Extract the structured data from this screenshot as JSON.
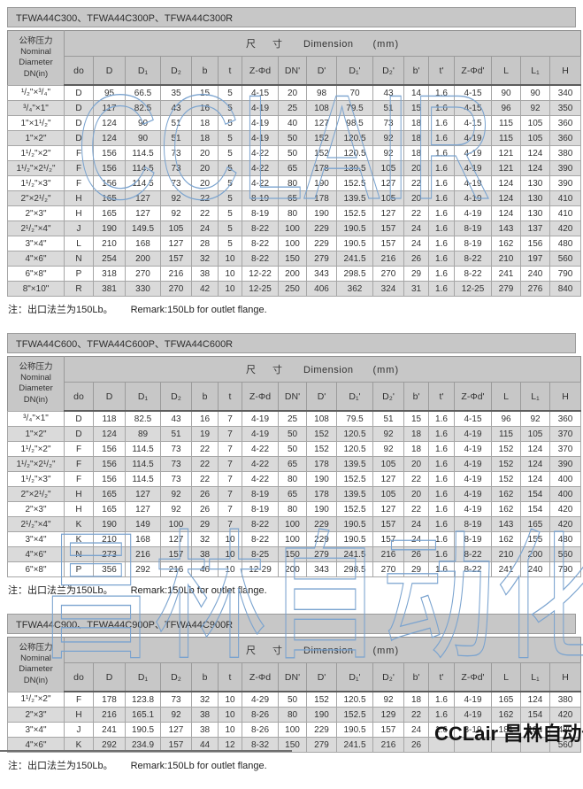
{
  "header_labels": {
    "nominal": "公称压力\nNominal\nDiameter\nDN(in)",
    "dimension_cn": "尺 寸",
    "dimension_en": "Dimension",
    "dimension_unit": "(mm)",
    "columns": [
      "do",
      "D",
      "D₁",
      "D₂",
      "b",
      "t",
      "Z-Φd",
      "DN'",
      "D'",
      "D₁'",
      "D₂'",
      "b'",
      "t'",
      "Z-Φd'",
      "L",
      "L₁",
      "H"
    ]
  },
  "tables": [
    {
      "title": "TFWA44C300、TFWA44C300P、TFWA44C300R",
      "note_cn": "注：出口法兰为150Lb。",
      "note_en": "Remark:150Lb for outlet flange.",
      "rows": [
        [
          "¹/₂\"×³/₄\"",
          "D",
          "95",
          "66.5",
          "35",
          "15",
          "5",
          "4-15",
          "20",
          "98",
          "70",
          "43",
          "14",
          "1.6",
          "4-15",
          "90",
          "90",
          "340"
        ],
        [
          "³/₄\"×1\"",
          "D",
          "117",
          "82.5",
          "43",
          "16",
          "5",
          "4-19",
          "25",
          "108",
          "79.5",
          "51",
          "15",
          "1.6",
          "4-15",
          "96",
          "92",
          "350"
        ],
        [
          "1\"×1¹/₂\"",
          "D",
          "124",
          "90",
          "51",
          "18",
          "5",
          "4-19",
          "40",
          "127",
          "98.5",
          "73",
          "18",
          "1.6",
          "4-15",
          "115",
          "105",
          "360"
        ],
        [
          "1\"×2\"",
          "D",
          "124",
          "90",
          "51",
          "18",
          "5",
          "4-19",
          "50",
          "152",
          "120.5",
          "92",
          "18",
          "1.6",
          "4-19",
          "115",
          "105",
          "360"
        ],
        [
          "1¹/₂\"×2\"",
          "F",
          "156",
          "114.5",
          "73",
          "20",
          "5",
          "4-22",
          "50",
          "152",
          "120.5",
          "92",
          "18",
          "1.6",
          "4-19",
          "121",
          "124",
          "380"
        ],
        [
          "1¹/₂\"×2¹/₂\"",
          "F",
          "156",
          "114.5",
          "73",
          "20",
          "5",
          "4-22",
          "65",
          "178",
          "139.5",
          "105",
          "20",
          "1.6",
          "4-19",
          "121",
          "124",
          "390"
        ],
        [
          "1¹/₂\"×3\"",
          "F",
          "156",
          "114.5",
          "73",
          "20",
          "5",
          "4-22",
          "80",
          "190",
          "152.5",
          "127",
          "22",
          "1.6",
          "4-19",
          "124",
          "130",
          "390"
        ],
        [
          "2\"×2¹/₂\"",
          "H",
          "165",
          "127",
          "92",
          "22",
          "5",
          "8-19",
          "65",
          "178",
          "139.5",
          "105",
          "20",
          "1.6",
          "4-19",
          "124",
          "130",
          "410"
        ],
        [
          "2\"×3\"",
          "H",
          "165",
          "127",
          "92",
          "22",
          "5",
          "8-19",
          "80",
          "190",
          "152.5",
          "127",
          "22",
          "1.6",
          "4-19",
          "124",
          "130",
          "410"
        ],
        [
          "2¹/₂\"×4\"",
          "J",
          "190",
          "149.5",
          "105",
          "24",
          "5",
          "8-22",
          "100",
          "229",
          "190.5",
          "157",
          "24",
          "1.6",
          "8-19",
          "143",
          "137",
          "420"
        ],
        [
          "3\"×4\"",
          "L",
          "210",
          "168",
          "127",
          "28",
          "5",
          "8-22",
          "100",
          "229",
          "190.5",
          "157",
          "24",
          "1.6",
          "8-19",
          "162",
          "156",
          "480"
        ],
        [
          "4\"×6\"",
          "N",
          "254",
          "200",
          "157",
          "32",
          "10",
          "8-22",
          "150",
          "279",
          "241.5",
          "216",
          "26",
          "1.6",
          "8-22",
          "210",
          "197",
          "560"
        ],
        [
          "6\"×8\"",
          "P",
          "318",
          "270",
          "216",
          "38",
          "10",
          "12-22",
          "200",
          "343",
          "298.5",
          "270",
          "29",
          "1.6",
          "8-22",
          "241",
          "240",
          "790"
        ],
        [
          "8\"×10\"",
          "R",
          "381",
          "330",
          "270",
          "42",
          "10",
          "12-25",
          "250",
          "406",
          "362",
          "324",
          "31",
          "1.6",
          "12-25",
          "279",
          "276",
          "840"
        ]
      ]
    },
    {
      "title": "TFWA44C600、TFWA44C600P、TFWA44C600R",
      "note_cn": "注：出口法兰为150Lb。",
      "note_en": "Remark:150Lb for outlet flange.",
      "rows": [
        [
          "³/₄\"×1\"",
          "D",
          "118",
          "82.5",
          "43",
          "16",
          "7",
          "4-19",
          "25",
          "108",
          "79.5",
          "51",
          "15",
          "1.6",
          "4-15",
          "96",
          "92",
          "360"
        ],
        [
          "1\"×2\"",
          "D",
          "124",
          "89",
          "51",
          "19",
          "7",
          "4-19",
          "50",
          "152",
          "120.5",
          "92",
          "18",
          "1.6",
          "4-19",
          "115",
          "105",
          "370"
        ],
        [
          "1¹/₂\"×2\"",
          "F",
          "156",
          "114.5",
          "73",
          "22",
          "7",
          "4-22",
          "50",
          "152",
          "120.5",
          "92",
          "18",
          "1.6",
          "4-19",
          "152",
          "124",
          "370"
        ],
        [
          "1¹/₂\"×2¹/₂\"",
          "F",
          "156",
          "114.5",
          "73",
          "22",
          "7",
          "4-22",
          "65",
          "178",
          "139.5",
          "105",
          "20",
          "1.6",
          "4-19",
          "152",
          "124",
          "390"
        ],
        [
          "1¹/₂\"×3\"",
          "F",
          "156",
          "114.5",
          "73",
          "22",
          "7",
          "4-22",
          "80",
          "190",
          "152.5",
          "127",
          "22",
          "1.6",
          "4-19",
          "152",
          "124",
          "400"
        ],
        [
          "2\"×2¹/₂\"",
          "H",
          "165",
          "127",
          "92",
          "26",
          "7",
          "8-19",
          "65",
          "178",
          "139.5",
          "105",
          "20",
          "1.6",
          "4-19",
          "162",
          "154",
          "400"
        ],
        [
          "2\"×3\"",
          "H",
          "165",
          "127",
          "92",
          "26",
          "7",
          "8-19",
          "80",
          "190",
          "152.5",
          "127",
          "22",
          "1.6",
          "4-19",
          "162",
          "154",
          "420"
        ],
        [
          "2¹/₂\"×4\"",
          "K",
          "190",
          "149",
          "100",
          "29",
          "7",
          "8-22",
          "100",
          "229",
          "190.5",
          "157",
          "24",
          "1.6",
          "8-19",
          "143",
          "165",
          "420"
        ],
        [
          "3\"×4\"",
          "K",
          "210",
          "168",
          "127",
          "32",
          "10",
          "8-22",
          "100",
          "229",
          "190.5",
          "157",
          "24",
          "1.6",
          "8-19",
          "162",
          "155",
          "480"
        ],
        [
          "4\"×6\"",
          "N",
          "273",
          "216",
          "157",
          "38",
          "10",
          "8-25",
          "150",
          "279",
          "241.5",
          "216",
          "26",
          "1.6",
          "8-22",
          "210",
          "200",
          "560"
        ],
        [
          "6\"×8\"",
          "P",
          "356",
          "292",
          "216",
          "46",
          "10",
          "12-29",
          "200",
          "343",
          "298.5",
          "270",
          "29",
          "1.6",
          "8-22",
          "241",
          "240",
          "790"
        ]
      ]
    },
    {
      "title": "TFWA44C900、TFWA44C900P、TFWA44C900R",
      "note_cn": "注：出口法兰为150Lb。",
      "note_en": "Remark:150Lb for outlet flange.",
      "rows": [
        [
          "1¹/₂\"×2\"",
          "F",
          "178",
          "123.8",
          "73",
          "32",
          "10",
          "4-29",
          "50",
          "152",
          "120.5",
          "92",
          "18",
          "1.6",
          "4-19",
          "165",
          "124",
          "380"
        ],
        [
          "2\"×3\"",
          "H",
          "216",
          "165.1",
          "92",
          "38",
          "10",
          "8-26",
          "80",
          "190",
          "152.5",
          "129",
          "22",
          "1.6",
          "4-19",
          "162",
          "154",
          "420"
        ],
        [
          "3\"×4\"",
          "J",
          "241",
          "190.5",
          "127",
          "38",
          "10",
          "8-26",
          "100",
          "229",
          "190.5",
          "157",
          "24",
          "1.6",
          "8-19",
          "181",
          "184",
          "480"
        ],
        [
          "4\"×6\"",
          "K",
          "292",
          "234.9",
          "157",
          "44",
          "12",
          "8-32",
          "150",
          "279",
          "241.5",
          "216",
          "26",
          "",
          "",
          "",
          "",
          "560"
        ]
      ]
    }
  ],
  "watermarks": {
    "top_text": "CCLAIR",
    "middle_text": "昌林自动化",
    "color": "#7aa3cf"
  },
  "logo_text": "CCLair 昌林自动化"
}
